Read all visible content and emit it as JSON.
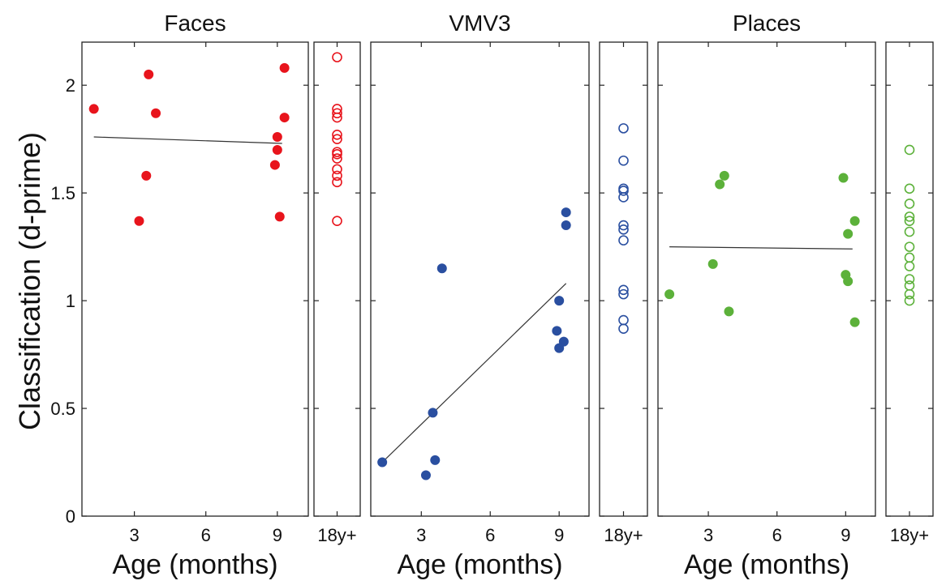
{
  "chart_data": {
    "type": "scatter",
    "ylabel": "Classification (d-prime)",
    "ylim": [
      0,
      2.2
    ],
    "yticks": [
      0,
      0.5,
      1,
      1.5,
      2
    ],
    "ytick_labels": [
      "0",
      "0.5",
      "1",
      "1.5",
      "2"
    ],
    "grid": false,
    "legend": "none",
    "panels": [
      {
        "title": "Faces",
        "xlabel": "Age (months)",
        "xlim": [
          0.8,
          10.3
        ],
        "xticks": [
          3,
          6,
          9
        ],
        "xtick_labels": [
          "3",
          "6",
          "9"
        ],
        "adult_label": "18y+",
        "color": "#e8141c",
        "infants": {
          "x": [
            1.3,
            3.6,
            3.9,
            3.5,
            3.2,
            9.3,
            9.3,
            9.0,
            9.0,
            8.9,
            9.1
          ],
          "y": [
            1.89,
            2.05,
            1.87,
            1.58,
            1.37,
            2.08,
            1.85,
            1.76,
            1.7,
            1.63,
            1.39
          ]
        },
        "fit": {
          "x": [
            1.3,
            9.2
          ],
          "y": [
            1.76,
            1.73
          ]
        },
        "adults": [
          2.13,
          1.89,
          1.87,
          1.85,
          1.77,
          1.75,
          1.69,
          1.68,
          1.66,
          1.61,
          1.58,
          1.55,
          1.37
        ]
      },
      {
        "title": "VMV3",
        "xlabel": "Age (months)",
        "xlim": [
          0.8,
          10.3
        ],
        "xticks": [
          3,
          6,
          9
        ],
        "xtick_labels": [
          "3",
          "6",
          "9"
        ],
        "adult_label": "18y+",
        "color": "#2a4fa0",
        "infants": {
          "x": [
            1.3,
            3.2,
            3.5,
            3.6,
            3.9,
            9.3,
            9.3,
            9.0,
            8.9,
            9.2,
            9.0
          ],
          "y": [
            0.25,
            0.19,
            0.48,
            0.26,
            1.15,
            1.41,
            1.35,
            1.0,
            0.86,
            0.81,
            0.78
          ]
        },
        "fit": {
          "x": [
            1.3,
            9.3
          ],
          "y": [
            0.25,
            1.08
          ]
        },
        "adults": [
          1.8,
          1.65,
          1.52,
          1.51,
          1.48,
          1.35,
          1.33,
          1.28,
          1.05,
          1.03,
          0.91,
          0.87
        ]
      },
      {
        "title": "Places",
        "xlabel": "Age (months)",
        "xlim": [
          0.8,
          10.3
        ],
        "xticks": [
          3,
          6,
          9
        ],
        "xtick_labels": [
          "3",
          "6",
          "9"
        ],
        "adult_label": "18y+",
        "color": "#5cb13a",
        "infants": {
          "x": [
            1.3,
            3.7,
            3.5,
            3.2,
            3.9,
            8.9,
            9.4,
            9.1,
            9.0,
            9.1,
            9.4
          ],
          "y": [
            1.03,
            1.58,
            1.54,
            1.17,
            0.95,
            1.57,
            1.37,
            1.31,
            1.12,
            1.09,
            0.9
          ]
        },
        "fit": {
          "x": [
            1.3,
            9.3
          ],
          "y": [
            1.25,
            1.24
          ]
        },
        "adults": [
          1.7,
          1.52,
          1.45,
          1.39,
          1.37,
          1.32,
          1.25,
          1.2,
          1.16,
          1.1,
          1.07,
          1.03,
          1.0
        ]
      }
    ]
  }
}
